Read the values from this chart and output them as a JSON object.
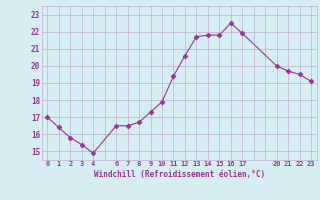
{
  "x": [
    0,
    1,
    2,
    3,
    4,
    6,
    7,
    8,
    9,
    10,
    11,
    12,
    13,
    14,
    15,
    16,
    17,
    20,
    21,
    22,
    23
  ],
  "y": [
    17.0,
    16.4,
    15.8,
    15.4,
    14.9,
    16.5,
    16.5,
    16.7,
    17.3,
    17.9,
    19.4,
    20.6,
    21.7,
    21.8,
    21.8,
    22.5,
    21.9,
    20.0,
    19.7,
    19.5,
    19.1
  ],
  "line_color": "#993399",
  "marker": "D",
  "marker_size": 2.5,
  "bg_color": "#d6eef2",
  "grid_color": "#c0aed0",
  "xlabel": "Windchill (Refroidissement éolien,°C)",
  "xlabel_color": "#993399",
  "tick_color": "#993399",
  "ylim": [
    14.5,
    23.5
  ],
  "xlim": [
    -0.5,
    23.5
  ],
  "yticks": [
    15,
    16,
    17,
    18,
    19,
    20,
    21,
    22,
    23
  ],
  "xtick_positions": [
    0,
    1,
    2,
    3,
    4,
    5,
    6,
    7,
    8,
    9,
    10,
    11,
    12,
    13,
    14,
    15,
    16,
    17,
    18,
    19,
    20,
    21,
    22,
    23
  ],
  "xtick_labels": [
    "0",
    "1",
    "2",
    "3",
    "4",
    "",
    "6",
    "7",
    "8",
    "9",
    "10",
    "11",
    "12",
    "13",
    "14",
    "15",
    "16",
    "17",
    "",
    "",
    "20",
    "21",
    "22",
    "23"
  ]
}
